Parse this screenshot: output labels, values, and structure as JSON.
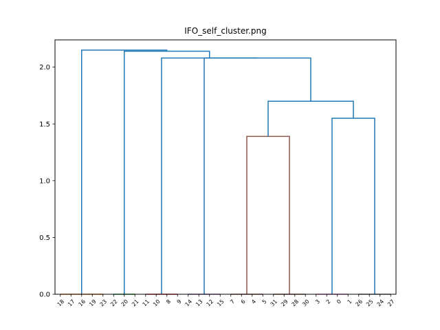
{
  "chart_data": {
    "type": "dendrogram",
    "title": "IFO_self_cluster.png",
    "xlabel": "",
    "ylabel": "",
    "ylim": [
      0,
      2.24
    ],
    "yticks": [
      "0.0",
      "0.5",
      "1.0",
      "1.5",
      "2.0"
    ],
    "ytick_values": [
      0.0,
      0.5,
      1.0,
      1.5,
      2.0
    ],
    "leaves": [
      "18",
      "17",
      "16",
      "19",
      "23",
      "22",
      "20",
      "21",
      "11",
      "10",
      "8",
      "9",
      "14",
      "13",
      "12",
      "15",
      "7",
      "6",
      "4",
      "5",
      "31",
      "29",
      "28",
      "30",
      "3",
      "2",
      "0",
      "1",
      "26",
      "25",
      "24",
      "27"
    ],
    "grid": false,
    "colors": {
      "above_threshold": "#1f77b4",
      "orange": "#ff7f0e",
      "green": "#2ca02c",
      "red": "#d62728",
      "purple": "#9467bd",
      "brown": "#8c564b",
      "pink": "#e377c2",
      "gray": "#7f7f7f",
      "olive": "#bcbd22",
      "cyan": "#17becf"
    },
    "links": [
      {
        "left": 0.0,
        "right": 4.0,
        "height": 0.0,
        "left_h": 0.0,
        "right_h": 0.0,
        "color": "orange"
      },
      {
        "left": 5.0,
        "right": 7.0,
        "height": 0.0,
        "left_h": 0.0,
        "right_h": 0.0,
        "color": "green"
      },
      {
        "left": 8.0,
        "right": 11.0,
        "height": 0.0,
        "left_h": 0.0,
        "right_h": 0.0,
        "color": "red"
      },
      {
        "left": 12.0,
        "right": 15.0,
        "height": 0.0,
        "left_h": 0.0,
        "right_h": 0.0,
        "color": "purple"
      },
      {
        "left": 16.0,
        "right": 19.0,
        "height": 0.0,
        "left_h": 0.0,
        "right_h": 0.0,
        "color": "brown"
      },
      {
        "left": 20.0,
        "right": 23.0,
        "height": 0.0,
        "left_h": 0.0,
        "right_h": 0.0,
        "color": "brown"
      },
      {
        "left": 24.0,
        "right": 27.0,
        "height": 0.0,
        "left_h": 0.0,
        "right_h": 0.0,
        "color": "pink"
      },
      {
        "left": 28.0,
        "right": 31.0,
        "height": 0.0,
        "left_h": 0.0,
        "right_h": 0.0,
        "color": "gray"
      },
      {
        "left": 17.5,
        "right": 21.5,
        "height": 1.39,
        "left_h": 0.0,
        "right_h": 0.0,
        "color": "brown"
      },
      {
        "left": 25.5,
        "right": 29.5,
        "height": 1.55,
        "left_h": 0.0,
        "right_h": 0.0,
        "color": "above_threshold"
      },
      {
        "left": 19.5,
        "right": 27.5,
        "height": 1.7,
        "left_h": 1.39,
        "right_h": 1.55,
        "color": "above_threshold"
      },
      {
        "left": 13.5,
        "right": 23.5,
        "height": 2.08,
        "left_h": 0.0,
        "right_h": 1.7,
        "color": "above_threshold"
      },
      {
        "left": 9.5,
        "right": 18.5,
        "height": 2.08,
        "left_h": 0.0,
        "right_h": 2.08,
        "color": "above_threshold"
      },
      {
        "left": 6.0,
        "right": 14.0,
        "height": 2.14,
        "left_h": 0.0,
        "right_h": 2.08,
        "color": "above_threshold"
      },
      {
        "left": 2.0,
        "right": 10.0,
        "height": 2.15,
        "left_h": 0.0,
        "right_h": 2.14,
        "color": "above_threshold"
      }
    ]
  }
}
